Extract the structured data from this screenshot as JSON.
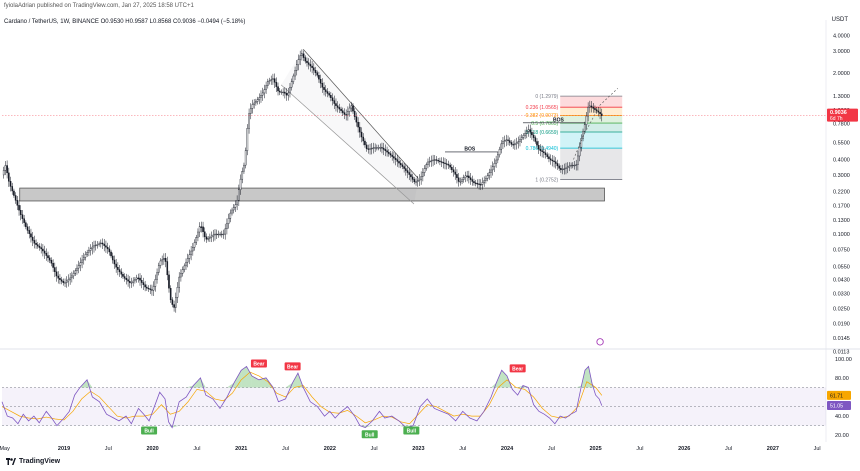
{
  "header": {
    "publisher_line": "fyiolaAdrian published on TradingView.com, Jan 27, 2025 18:58 UTC+1",
    "symbol_line": "Cardano / TetherUS, 1W, BINANCE  O0.9530  H0.9587  L0.8568  C0.9036  −0.0494 (−5.18%)",
    "currency": "USDT"
  },
  "footer": {
    "brand": "TradingView"
  },
  "chart_data": [
    {
      "type": "candlestick",
      "title": "Cardano / TetherUS, 1W, BINANCE",
      "y_scale": "log",
      "ylim": [
        0.0125,
        4.6
      ],
      "y_tick_labels": [
        "4.0000",
        "3.0000",
        "2.0000",
        "1.3000",
        "1.0000",
        "0.7800",
        "0.5500",
        "0.4000",
        "0.3000",
        "0.2200",
        "0.1700",
        "0.1300",
        "0.1000",
        "0.0750",
        "0.0550",
        "0.0430",
        "0.0330",
        "0.0250",
        "0.0190",
        "0.0145",
        "0.0113"
      ],
      "y_tick_values": [
        4.0,
        3.0,
        2.0,
        1.3,
        1.0,
        0.78,
        0.55,
        0.4,
        0.3,
        0.22,
        0.17,
        0.13,
        0.1,
        0.075,
        0.055,
        0.043,
        0.033,
        0.025,
        0.019,
        0.0145,
        0.0113
      ],
      "x_tick_labels": [
        "May",
        "2019",
        "Jul",
        "2020",
        "Jul",
        "2021",
        "Jul",
        "2022",
        "Jul",
        "2023",
        "Jul",
        "2024",
        "Jul",
        "2025",
        "Jul",
        "2026",
        "Jul",
        "2027",
        "Jul"
      ],
      "x_tick_years": [
        2018.33,
        2019.0,
        2019.5,
        2020.0,
        2020.5,
        2021.0,
        2021.5,
        2022.0,
        2022.5,
        2023.0,
        2023.5,
        2024.0,
        2024.5,
        2025.0,
        2025.5,
        2026.0,
        2026.5,
        2027.0,
        2027.5
      ],
      "x_range_years": [
        2018.3,
        2027.6
      ],
      "price_path": [
        [
          2018.3,
          0.3
        ],
        [
          2018.34,
          0.36
        ],
        [
          2018.38,
          0.26
        ],
        [
          2018.44,
          0.2
        ],
        [
          2018.5,
          0.15
        ],
        [
          2018.58,
          0.11
        ],
        [
          2018.66,
          0.085
        ],
        [
          2018.75,
          0.075
        ],
        [
          2018.85,
          0.06
        ],
        [
          2018.92,
          0.045
        ],
        [
          2019.0,
          0.04
        ],
        [
          2019.08,
          0.045
        ],
        [
          2019.16,
          0.055
        ],
        [
          2019.25,
          0.07
        ],
        [
          2019.33,
          0.08
        ],
        [
          2019.42,
          0.085
        ],
        [
          2019.5,
          0.075
        ],
        [
          2019.58,
          0.055
        ],
        [
          2019.67,
          0.045
        ],
        [
          2019.75,
          0.04
        ],
        [
          2019.83,
          0.045
        ],
        [
          2019.92,
          0.037
        ],
        [
          2020.0,
          0.035
        ],
        [
          2020.08,
          0.06
        ],
        [
          2020.14,
          0.065
        ],
        [
          2020.2,
          0.03
        ],
        [
          2020.24,
          0.025
        ],
        [
          2020.3,
          0.045
        ],
        [
          2020.38,
          0.06
        ],
        [
          2020.46,
          0.08
        ],
        [
          2020.54,
          0.12
        ],
        [
          2020.6,
          0.09
        ],
        [
          2020.7,
          0.1
        ],
        [
          2020.8,
          0.1
        ],
        [
          2020.88,
          0.15
        ],
        [
          2020.95,
          0.18
        ],
        [
          2021.0,
          0.3
        ],
        [
          2021.04,
          0.38
        ],
        [
          2021.08,
          0.9
        ],
        [
          2021.12,
          1.1
        ],
        [
          2021.18,
          1.2
        ],
        [
          2021.25,
          1.4
        ],
        [
          2021.3,
          1.7
        ],
        [
          2021.36,
          1.8
        ],
        [
          2021.42,
          1.4
        ],
        [
          2021.48,
          1.4
        ],
        [
          2021.52,
          1.3
        ],
        [
          2021.58,
          1.8
        ],
        [
          2021.64,
          2.5
        ],
        [
          2021.68,
          2.9
        ],
        [
          2021.72,
          2.5
        ],
        [
          2021.8,
          2.2
        ],
        [
          2021.86,
          1.9
        ],
        [
          2021.92,
          1.5
        ],
        [
          2022.0,
          1.3
        ],
        [
          2022.06,
          1.1
        ],
        [
          2022.12,
          1.0
        ],
        [
          2022.18,
          0.9
        ],
        [
          2022.24,
          1.1
        ],
        [
          2022.3,
          0.8
        ],
        [
          2022.36,
          0.6
        ],
        [
          2022.42,
          0.48
        ],
        [
          2022.5,
          0.5
        ],
        [
          2022.58,
          0.5
        ],
        [
          2022.66,
          0.45
        ],
        [
          2022.74,
          0.4
        ],
        [
          2022.82,
          0.35
        ],
        [
          2022.9,
          0.3
        ],
        [
          2022.96,
          0.26
        ],
        [
          2023.02,
          0.28
        ],
        [
          2023.1,
          0.38
        ],
        [
          2023.18,
          0.4
        ],
        [
          2023.26,
          0.38
        ],
        [
          2023.34,
          0.36
        ],
        [
          2023.42,
          0.3
        ],
        [
          2023.46,
          0.26
        ],
        [
          2023.54,
          0.3
        ],
        [
          2023.62,
          0.26
        ],
        [
          2023.7,
          0.25
        ],
        [
          2023.76,
          0.28
        ],
        [
          2023.82,
          0.33
        ],
        [
          2023.88,
          0.4
        ],
        [
          2023.94,
          0.55
        ],
        [
          2024.0,
          0.58
        ],
        [
          2024.06,
          0.52
        ],
        [
          2024.12,
          0.55
        ],
        [
          2024.18,
          0.62
        ],
        [
          2024.24,
          0.7
        ],
        [
          2024.3,
          0.6
        ],
        [
          2024.36,
          0.48
        ],
        [
          2024.42,
          0.45
        ],
        [
          2024.48,
          0.4
        ],
        [
          2024.54,
          0.38
        ],
        [
          2024.6,
          0.33
        ],
        [
          2024.66,
          0.34
        ],
        [
          2024.72,
          0.36
        ],
        [
          2024.78,
          0.36
        ],
        [
          2024.84,
          0.6
        ],
        [
          2024.88,
          0.78
        ],
        [
          2024.92,
          1.1
        ],
        [
          2024.96,
          1.05
        ],
        [
          2025.0,
          1.0
        ],
        [
          2025.04,
          0.95
        ],
        [
          2025.07,
          0.9
        ]
      ],
      "annotations": {
        "demand_zone": {
          "x_start": 2018.5,
          "x_end": 2025.1,
          "price_low": 0.185,
          "price_high": 0.235
        },
        "channel": {
          "upper": [
            [
              2021.7,
              3.1
            ],
            [
              2023.0,
              0.28
            ]
          ],
          "lower": [
            [
              2021.45,
              1.6
            ],
            [
              2022.95,
              0.175
            ]
          ]
        },
        "bos_labels": [
          "BOS",
          "BOS"
        ],
        "bos_levels": [
          0.46,
          0.79
        ],
        "fibonacci": {
          "levels": [
            {
              "ratio": "0",
              "label": "0 (1.2979)",
              "price": 1.2979
            },
            {
              "ratio": "0.236",
              "label": "0.236 (1.0565)",
              "price": 1.0565
            },
            {
              "ratio": "0.382",
              "label": "0.382 (0.9073)",
              "price": 0.9073
            },
            {
              "ratio": "0.5",
              "label": "0.5 (0.7865)",
              "price": 0.7865
            },
            {
              "ratio": "0.618",
              "label": "0.618 (0.6659)",
              "price": 0.6659
            },
            {
              "ratio": "0.786",
              "label": "0.786 (0.4940)",
              "price": 0.494
            },
            {
              "ratio": "1",
              "label": "1 (0.2752)",
              "price": 0.2752
            }
          ],
          "x_start": 2024.6,
          "x_end": 2025.3,
          "colors": [
            "#787b86",
            "#f23645",
            "#ff9800",
            "#4caf50",
            "#089981",
            "#00bcd4",
            "#787b86"
          ]
        },
        "last_price_label": "0.9036",
        "countdown_label": "6d 7h",
        "last_price_color": "#f23645"
      }
    },
    {
      "type": "line",
      "title": "RSI",
      "ylim": [
        15,
        105
      ],
      "y_tick_labels": [
        "100.00",
        "80.00",
        "60.00",
        "40.00",
        "20.00"
      ],
      "y_tick_values": [
        100,
        80,
        60,
        40,
        20
      ],
      "overbought": 70,
      "oversold": 30,
      "midline": 50,
      "current_rsi": "51.05",
      "current_ma": "61.71",
      "rsi_color": "#7e57c2",
      "ma_color": "#f7a600",
      "rsi_series": [
        [
          2018.3,
          55
        ],
        [
          2018.36,
          40
        ],
        [
          2018.42,
          38
        ],
        [
          2018.48,
          32
        ],
        [
          2018.54,
          42
        ],
        [
          2018.6,
          35
        ],
        [
          2018.66,
          40
        ],
        [
          2018.72,
          33
        ],
        [
          2018.8,
          45
        ],
        [
          2018.86,
          38
        ],
        [
          2018.92,
          30
        ],
        [
          2019.0,
          38
        ],
        [
          2019.06,
          45
        ],
        [
          2019.12,
          62
        ],
        [
          2019.18,
          70
        ],
        [
          2019.26,
          78
        ],
        [
          2019.32,
          60
        ],
        [
          2019.4,
          55
        ],
        [
          2019.48,
          42
        ],
        [
          2019.56,
          38
        ],
        [
          2019.62,
          35
        ],
        [
          2019.7,
          40
        ],
        [
          2019.76,
          32
        ],
        [
          2019.84,
          48
        ],
        [
          2019.9,
          42
        ],
        [
          2019.96,
          35
        ],
        [
          2020.02,
          50
        ],
        [
          2020.08,
          65
        ],
        [
          2020.14,
          58
        ],
        [
          2020.18,
          34
        ],
        [
          2020.22,
          28
        ],
        [
          2020.3,
          55
        ],
        [
          2020.38,
          60
        ],
        [
          2020.46,
          72
        ],
        [
          2020.54,
          80
        ],
        [
          2020.6,
          62
        ],
        [
          2020.68,
          58
        ],
        [
          2020.76,
          48
        ],
        [
          2020.84,
          60
        ],
        [
          2020.92,
          75
        ],
        [
          2021.0,
          88
        ],
        [
          2021.06,
          92
        ],
        [
          2021.12,
          82
        ],
        [
          2021.2,
          78
        ],
        [
          2021.28,
          80
        ],
        [
          2021.36,
          70
        ],
        [
          2021.42,
          55
        ],
        [
          2021.5,
          58
        ],
        [
          2021.58,
          75
        ],
        [
          2021.64,
          85
        ],
        [
          2021.7,
          70
        ],
        [
          2021.78,
          55
        ],
        [
          2021.86,
          50
        ],
        [
          2021.94,
          40
        ],
        [
          2022.0,
          45
        ],
        [
          2022.06,
          38
        ],
        [
          2022.12,
          44
        ],
        [
          2022.2,
          50
        ],
        [
          2022.28,
          40
        ],
        [
          2022.34,
          30
        ],
        [
          2022.4,
          28
        ],
        [
          2022.48,
          35
        ],
        [
          2022.56,
          45
        ],
        [
          2022.62,
          38
        ],
        [
          2022.7,
          40
        ],
        [
          2022.78,
          35
        ],
        [
          2022.86,
          28
        ],
        [
          2022.94,
          30
        ],
        [
          2023.02,
          50
        ],
        [
          2023.1,
          58
        ],
        [
          2023.18,
          48
        ],
        [
          2023.26,
          45
        ],
        [
          2023.34,
          42
        ],
        [
          2023.42,
          35
        ],
        [
          2023.5,
          45
        ],
        [
          2023.58,
          38
        ],
        [
          2023.66,
          35
        ],
        [
          2023.74,
          45
        ],
        [
          2023.82,
          60
        ],
        [
          2023.88,
          75
        ],
        [
          2023.94,
          88
        ],
        [
          2024.0,
          82
        ],
        [
          2024.06,
          68
        ],
        [
          2024.12,
          62
        ],
        [
          2024.18,
          72
        ],
        [
          2024.24,
          70
        ],
        [
          2024.3,
          52
        ],
        [
          2024.36,
          45
        ],
        [
          2024.42,
          42
        ],
        [
          2024.48,
          38
        ],
        [
          2024.54,
          32
        ],
        [
          2024.6,
          40
        ],
        [
          2024.66,
          38
        ],
        [
          2024.72,
          42
        ],
        [
          2024.78,
          45
        ],
        [
          2024.84,
          72
        ],
        [
          2024.88,
          88
        ],
        [
          2024.92,
          92
        ],
        [
          2024.96,
          74
        ],
        [
          2025.0,
          62
        ],
        [
          2025.04,
          58
        ],
        [
          2025.07,
          51
        ]
      ],
      "ma_series": [
        [
          2018.3,
          50
        ],
        [
          2018.4,
          45
        ],
        [
          2018.5,
          40
        ],
        [
          2018.6,
          38
        ],
        [
          2018.7,
          37
        ],
        [
          2018.8,
          39
        ],
        [
          2018.9,
          37
        ],
        [
          2019.0,
          36
        ],
        [
          2019.1,
          45
        ],
        [
          2019.2,
          58
        ],
        [
          2019.3,
          66
        ],
        [
          2019.4,
          60
        ],
        [
          2019.5,
          50
        ],
        [
          2019.6,
          40
        ],
        [
          2019.7,
          38
        ],
        [
          2019.8,
          40
        ],
        [
          2019.9,
          40
        ],
        [
          2020.0,
          42
        ],
        [
          2020.1,
          52
        ],
        [
          2020.2,
          42
        ],
        [
          2020.3,
          45
        ],
        [
          2020.4,
          55
        ],
        [
          2020.5,
          68
        ],
        [
          2020.6,
          66
        ],
        [
          2020.7,
          58
        ],
        [
          2020.8,
          56
        ],
        [
          2020.9,
          64
        ],
        [
          2021.0,
          78
        ],
        [
          2021.1,
          86
        ],
        [
          2021.2,
          82
        ],
        [
          2021.3,
          76
        ],
        [
          2021.4,
          64
        ],
        [
          2021.5,
          60
        ],
        [
          2021.6,
          70
        ],
        [
          2021.7,
          72
        ],
        [
          2021.8,
          60
        ],
        [
          2021.9,
          50
        ],
        [
          2022.0,
          44
        ],
        [
          2022.1,
          43
        ],
        [
          2022.2,
          46
        ],
        [
          2022.3,
          40
        ],
        [
          2022.4,
          33
        ],
        [
          2022.5,
          36
        ],
        [
          2022.6,
          40
        ],
        [
          2022.7,
          39
        ],
        [
          2022.8,
          34
        ],
        [
          2022.9,
          32
        ],
        [
          2023.0,
          42
        ],
        [
          2023.1,
          52
        ],
        [
          2023.2,
          50
        ],
        [
          2023.3,
          45
        ],
        [
          2023.4,
          40
        ],
        [
          2023.5,
          42
        ],
        [
          2023.6,
          40
        ],
        [
          2023.7,
          40
        ],
        [
          2023.8,
          52
        ],
        [
          2023.9,
          70
        ],
        [
          2024.0,
          78
        ],
        [
          2024.1,
          70
        ],
        [
          2024.2,
          68
        ],
        [
          2024.3,
          60
        ],
        [
          2024.4,
          48
        ],
        [
          2024.5,
          40
        ],
        [
          2024.6,
          38
        ],
        [
          2024.7,
          40
        ],
        [
          2024.8,
          50
        ],
        [
          2024.9,
          76
        ],
        [
          2025.0,
          70
        ],
        [
          2025.07,
          61.71
        ]
      ],
      "divergence_labels": [
        {
          "text": "Bull",
          "year": 2019.96,
          "value": 25
        },
        {
          "text": "Bear",
          "year": 2021.2,
          "value": 95
        },
        {
          "text": "Bear",
          "year": 2021.58,
          "value": 92
        },
        {
          "text": "Bull",
          "year": 2022.45,
          "value": 21
        },
        {
          "text": "Bull",
          "year": 2022.92,
          "value": 25
        },
        {
          "text": "Bear",
          "year": 2024.12,
          "value": 90
        }
      ],
      "bull_color": "#4caf50",
      "bear_color": "#f23645"
    }
  ]
}
